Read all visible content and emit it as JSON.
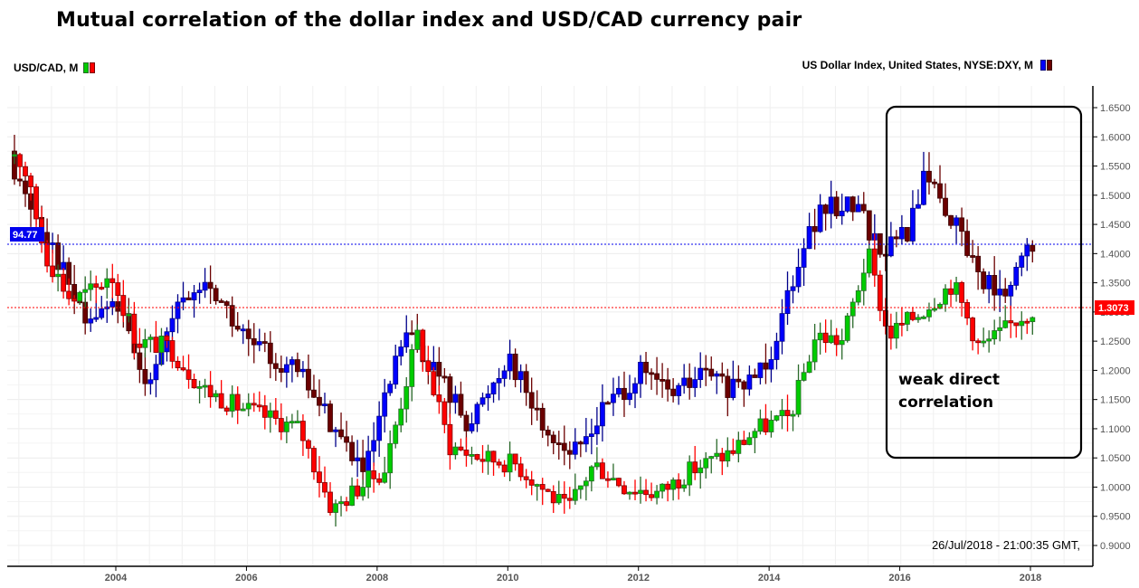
{
  "header": {
    "title": "Mutual correlation of the dollar index and USD/CAD currency pair"
  },
  "legend": {
    "left": {
      "label": "USD/CAD, M",
      "colors": [
        "#00cc00",
        "#ff0000"
      ]
    },
    "right": {
      "label": "US Dollar Index, United States, NYSE:DXY, M",
      "colors": [
        "#0000ff",
        "#6b0000"
      ]
    }
  },
  "badges": {
    "dxy_current": {
      "label": "94.77",
      "color": "#0000ee"
    },
    "usdcad_current": {
      "label": "1.3073",
      "color": "#ff0000"
    }
  },
  "annotation": {
    "line1": "weak direct",
    "line2": "correlation"
  },
  "footer": {
    "timestamp": "26/Jul/2018 - 21:00:35 GMT,"
  },
  "colors": {
    "usdcad_up": "#00cc00",
    "usdcad_down": "#ff0000",
    "dxy_up": "#0000ff",
    "dxy_down": "#6b0000",
    "grid": "#ececec",
    "axis": "#000000"
  },
  "chart_data": {
    "type": "candlestick",
    "title": "Mutual correlation of the dollar index and USD/CAD currency pair",
    "xlabel": "",
    "ylabel": "",
    "x_ticks": [
      "2004",
      "2006",
      "2008",
      "2010",
      "2012",
      "2014",
      "2016",
      "2018"
    ],
    "y_ticks_right": [
      "1.6500",
      "1.6000",
      "1.5500",
      "1.5000",
      "1.4500",
      "1.4000",
      "1.3500",
      "1.3000",
      "1.2500",
      "1.2000",
      "1.1500",
      "1.1000",
      "1.0500",
      "1.0000",
      "0.9500",
      "0.9000"
    ],
    "ylim": [
      0.88,
      1.67
    ],
    "grid": true,
    "legend_position": "top",
    "reference_lines": [
      {
        "series": "US Dollar Index",
        "value": 94.77,
        "style": "dotted",
        "color": "#0000ee"
      },
      {
        "series": "USD/CAD",
        "value": 1.3073,
        "style": "dotted",
        "color": "#ff0000"
      }
    ],
    "annotation_box": {
      "text": "weak direct correlation",
      "x_range": [
        "2016",
        "2018.7"
      ]
    },
    "series": [
      {
        "name": "USD/CAD, M",
        "scale": "right axis",
        "approx_path": [
          {
            "x": "2002.6",
            "close": 1.56
          },
          {
            "x": "2002.9",
            "close": 1.58
          },
          {
            "x": "2003.1",
            "close": 1.54
          },
          {
            "x": "2003.4",
            "close": 1.4
          },
          {
            "x": "2003.8",
            "close": 1.32
          },
          {
            "x": "2004.2",
            "close": 1.34
          },
          {
            "x": "2004.4",
            "close": 1.37
          },
          {
            "x": "2004.8",
            "close": 1.25
          },
          {
            "x": "2005.3",
            "close": 1.24
          },
          {
            "x": "2005.8",
            "close": 1.17
          },
          {
            "x": "2006.3",
            "close": 1.14
          },
          {
            "x": "2006.8",
            "close": 1.12
          },
          {
            "x": "2007.3",
            "close": 1.1
          },
          {
            "x": "2007.8",
            "close": 0.96
          },
          {
            "x": "2008.2",
            "close": 1.0
          },
          {
            "x": "2008.6",
            "close": 1.03
          },
          {
            "x": "2009.1",
            "close": 1.26
          },
          {
            "x": "2009.6",
            "close": 1.07
          },
          {
            "x": "2010.1",
            "close": 1.05
          },
          {
            "x": "2010.6",
            "close": 1.04
          },
          {
            "x": "2011.0",
            "close": 1.0
          },
          {
            "x": "2011.4",
            "close": 0.96
          },
          {
            "x": "2011.8",
            "close": 1.04
          },
          {
            "x": "2012.3",
            "close": 1.0
          },
          {
            "x": "2012.8",
            "close": 0.99
          },
          {
            "x": "2013.3",
            "close": 1.03
          },
          {
            "x": "2013.9",
            "close": 1.06
          },
          {
            "x": "2014.3",
            "close": 1.1
          },
          {
            "x": "2014.8",
            "close": 1.12
          },
          {
            "x": "2015.2",
            "close": 1.26
          },
          {
            "x": "2015.6",
            "close": 1.25
          },
          {
            "x": "2016.0",
            "close": 1.4
          },
          {
            "x": "2016.3",
            "close": 1.26
          },
          {
            "x": "2016.8",
            "close": 1.3
          },
          {
            "x": "2017.3",
            "close": 1.35
          },
          {
            "x": "2017.7",
            "close": 1.24
          },
          {
            "x": "2018.0",
            "close": 1.26
          },
          {
            "x": "2018.3",
            "close": 1.29
          },
          {
            "x": "2018.55",
            "close": 1.3073
          }
        ]
      },
      {
        "name": "US Dollar Index, United States, NYSE:DXY, M",
        "scale": "overlay (not labeled)",
        "approx_path": [
          {
            "x": "2002.6",
            "close": 107
          },
          {
            "x": "2003.0",
            "close": 101
          },
          {
            "x": "2003.5",
            "close": 95
          },
          {
            "x": "2004.0",
            "close": 87
          },
          {
            "x": "2004.5",
            "close": 89
          },
          {
            "x": "2004.9",
            "close": 81
          },
          {
            "x": "2005.5",
            "close": 89
          },
          {
            "x": "2005.9",
            "close": 91
          },
          {
            "x": "2006.5",
            "close": 85
          },
          {
            "x": "2007.3",
            "close": 82
          },
          {
            "x": "2007.9",
            "close": 76
          },
          {
            "x": "2008.3",
            "close": 72
          },
          {
            "x": "2008.9",
            "close": 86
          },
          {
            "x": "2009.3",
            "close": 83
          },
          {
            "x": "2009.9",
            "close": 77
          },
          {
            "x": "2010.5",
            "close": 84
          },
          {
            "x": "2011.0",
            "close": 77
          },
          {
            "x": "2011.5",
            "close": 74
          },
          {
            "x": "2012.0",
            "close": 79
          },
          {
            "x": "2012.5",
            "close": 82
          },
          {
            "x": "2013.0",
            "close": 80
          },
          {
            "x": "2013.5",
            "close": 82
          },
          {
            "x": "2014.0",
            "close": 80
          },
          {
            "x": "2014.5",
            "close": 84
          },
          {
            "x": "2015.0",
            "close": 95
          },
          {
            "x": "2015.3",
            "close": 98
          },
          {
            "x": "2015.8",
            "close": 99
          },
          {
            "x": "2016.2",
            "close": 94
          },
          {
            "x": "2016.6",
            "close": 96
          },
          {
            "x": "2016.9",
            "close": 102
          },
          {
            "x": "2017.3",
            "close": 97
          },
          {
            "x": "2017.7",
            "close": 92
          },
          {
            "x": "2018.1",
            "close": 89
          },
          {
            "x": "2018.4",
            "close": 94
          },
          {
            "x": "2018.55",
            "close": 94.77
          }
        ]
      }
    ]
  }
}
